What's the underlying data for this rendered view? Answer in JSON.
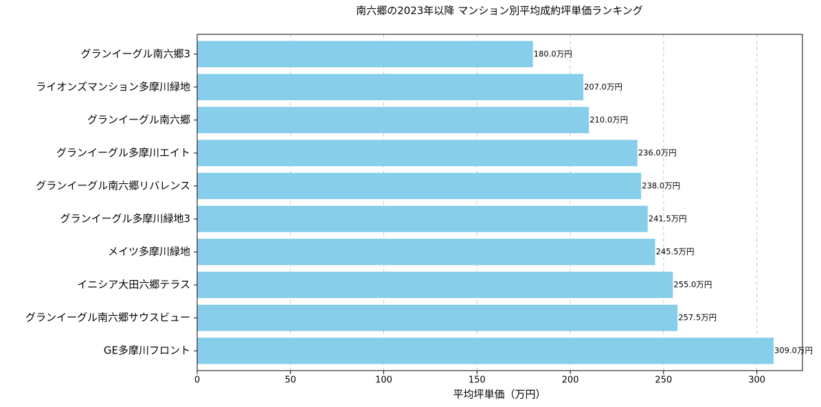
{
  "chart_data": {
    "type": "bar",
    "orientation": "horizontal",
    "title": "南六郷の2023年以降 マンション別平均成約坪単価ランキング",
    "xlabel": "平均坪単価（万円）",
    "categories": [
      "グランイーグル南六郷3",
      "ライオンズマンション多摩川緑地",
      "グランイーグル南六郷",
      "グランイーグル多摩川エイト",
      "グランイーグル南六郷リバレンス",
      "グランイーグル多摩川緑地3",
      "メイツ多摩川緑地",
      "イニシア大田六郷テラス",
      "グランイーグル南六郷サウスビュー",
      "GE多摩川フロント"
    ],
    "values": [
      180.0,
      207.0,
      210.0,
      236.0,
      238.0,
      241.5,
      245.5,
      255.0,
      257.5,
      309.0
    ],
    "value_labels": [
      "180.0万円",
      "207.0万円",
      "210.0万円",
      "236.0万円",
      "238.0万円",
      "241.5万円",
      "245.5万円",
      "255.0万円",
      "257.5万円",
      "309.0万円"
    ],
    "color": "#87ceeb",
    "xlim": [
      0,
      324.45
    ],
    "xticks": [
      0,
      50,
      100,
      150,
      200,
      250,
      300
    ],
    "grid": true
  }
}
